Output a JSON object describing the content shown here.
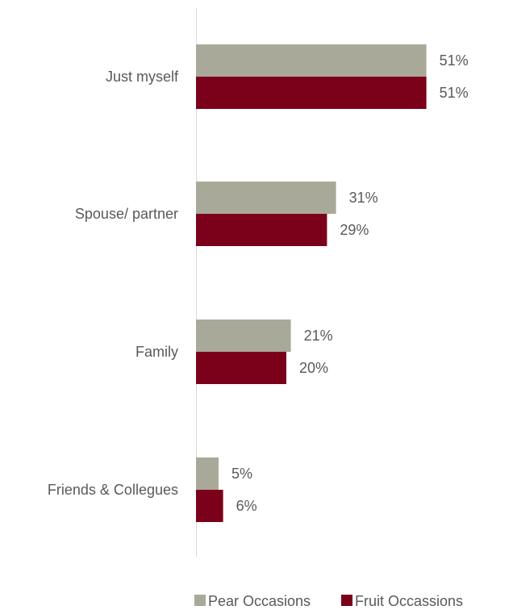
{
  "chart_data": {
    "type": "bar",
    "orientation": "horizontal",
    "categories": [
      "Just myself",
      "Spouse/ partner",
      "Family",
      "Friends & Collegues"
    ],
    "series": [
      {
        "name": "Pear Occasions",
        "values": [
          51,
          31,
          21,
          5
        ],
        "labels": [
          "51%",
          "31%",
          "21%",
          "5%"
        ],
        "color": "#A9A99A"
      },
      {
        "name": "Fruit Occassions",
        "values": [
          51,
          29,
          20,
          6
        ],
        "labels": [
          "51%",
          "29%",
          "20%",
          "6%"
        ],
        "color": "#7B0019"
      }
    ],
    "xlim": [
      0,
      55
    ],
    "grid": false,
    "legend": "bottom"
  },
  "colors": {
    "axis": "#D9D9D9",
    "text": "#595959"
  }
}
